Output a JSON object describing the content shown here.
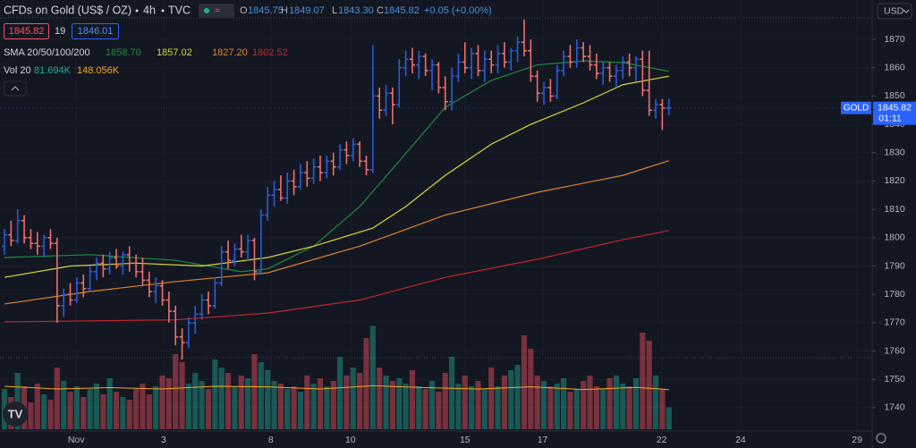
{
  "chart_data": {
    "type": "ohlc",
    "title": "CFDs on Gold (US$ / OZ)",
    "interval": "4h",
    "source": "TVC",
    "header": {
      "o": "O",
      "o_value": "1845.75",
      "h": "H",
      "h_value": "1849.07",
      "l": "L",
      "l_value": "1843.30",
      "c": "C",
      "c_value": "1845.82",
      "change": "+0.05 (+0.00%)"
    },
    "quote": {
      "bid": "1845.82",
      "spread": "19",
      "ask": "1846.01"
    },
    "price_label": {
      "symbol": "GOLD",
      "price": "1845.82",
      "countdown": "01:11"
    },
    "currency": "USD",
    "up_color": "#2a5bd7",
    "down_color": "#ef6f6c",
    "volume_up_color": "#22ab94",
    "volume_down_color": "#f7525f",
    "open": [
      1797,
      1801,
      1799,
      1806,
      1800,
      1798,
      1797,
      1800,
      1798,
      1776,
      1780,
      1778,
      1784,
      1782,
      1788,
      1791,
      1789,
      1793,
      1790,
      1794,
      1791,
      1788,
      1785,
      1781,
      1783,
      1778,
      1774,
      1765,
      1763,
      1770,
      1773,
      1778,
      1776,
      1784,
      1795,
      1792,
      1796,
      1795,
      1799,
      1788,
      1808,
      1815,
      1817,
      1814,
      1820,
      1818,
      1823,
      1821,
      1825,
      1823,
      1827,
      1825,
      1831,
      1829,
      1833,
      1827,
      1824,
      1850,
      1845,
      1851,
      1847,
      1860,
      1863,
      1861,
      1864,
      1859,
      1861,
      1853,
      1848,
      1857,
      1862,
      1860,
      1865,
      1859,
      1863,
      1861,
      1865,
      1862,
      1866,
      1869,
      1866,
      1857,
      1851,
      1853,
      1850,
      1859,
      1864,
      1862,
      1867,
      1864,
      1861,
      1858,
      1860,
      1857,
      1859,
      1862,
      1860,
      1863,
      1852,
      1845,
      1847,
      1845.75
    ],
    "high": [
      1803,
      1806,
      1810,
      1808,
      1803,
      1802,
      1801,
      1803,
      1800,
      1782,
      1784,
      1786,
      1787,
      1790,
      1793,
      1794,
      1795,
      1796,
      1795,
      1797,
      1794,
      1793,
      1788,
      1786,
      1785,
      1781,
      1776,
      1768,
      1772,
      1776,
      1780,
      1781,
      1786,
      1797,
      1799,
      1798,
      1801,
      1801,
      1800,
      1810,
      1818,
      1820,
      1822,
      1823,
      1824,
      1826,
      1827,
      1828,
      1829,
      1829,
      1830,
      1833,
      1834,
      1835,
      1834,
      1829,
      1868,
      1853,
      1854,
      1853,
      1863,
      1866,
      1867,
      1866,
      1865,
      1863,
      1862,
      1857,
      1860,
      1865,
      1869,
      1867,
      1868,
      1866,
      1866,
      1868,
      1869,
      1867,
      1871,
      1877,
      1870,
      1859,
      1855,
      1856,
      1861,
      1866,
      1868,
      1870,
      1869,
      1868,
      1865,
      1862,
      1862,
      1861,
      1864,
      1865,
      1864,
      1866,
      1866,
      1849,
      1849,
      1849.07
    ],
    "low": [
      1794,
      1797,
      1798,
      1798,
      1796,
      1794,
      1793,
      1796,
      1770,
      1772,
      1776,
      1777,
      1779,
      1781,
      1785,
      1786,
      1787,
      1789,
      1787,
      1788,
      1786,
      1783,
      1779,
      1777,
      1776,
      1770,
      1762,
      1757,
      1761,
      1766,
      1771,
      1773,
      1775,
      1783,
      1789,
      1790,
      1793,
      1792,
      1785,
      1787,
      1806,
      1811,
      1813,
      1812,
      1815,
      1817,
      1818,
      1819,
      1820,
      1821,
      1822,
      1824,
      1826,
      1827,
      1825,
      1822,
      1823,
      1842,
      1843,
      1840,
      1846,
      1857,
      1858,
      1856,
      1857,
      1852,
      1851,
      1845,
      1845,
      1855,
      1858,
      1856,
      1857,
      1855,
      1858,
      1858,
      1860,
      1859,
      1862,
      1864,
      1855,
      1848,
      1847,
      1848,
      1849,
      1857,
      1860,
      1860,
      1862,
      1859,
      1856,
      1854,
      1855,
      1853,
      1856,
      1857,
      1855,
      1850,
      1843,
      1842,
      1838,
      1843.3
    ],
    "close": [
      1801,
      1799,
      1806,
      1800,
      1798,
      1797,
      1800,
      1798,
      1776,
      1780,
      1778,
      1784,
      1782,
      1788,
      1791,
      1789,
      1793,
      1790,
      1794,
      1791,
      1788,
      1785,
      1781,
      1783,
      1778,
      1774,
      1765,
      1763,
      1770,
      1773,
      1778,
      1776,
      1784,
      1795,
      1792,
      1796,
      1795,
      1799,
      1788,
      1808,
      1815,
      1817,
      1814,
      1820,
      1818,
      1823,
      1821,
      1825,
      1823,
      1827,
      1825,
      1831,
      1829,
      1833,
      1827,
      1824,
      1850,
      1845,
      1851,
      1847,
      1860,
      1863,
      1861,
      1864,
      1859,
      1861,
      1853,
      1848,
      1857,
      1862,
      1860,
      1865,
      1859,
      1863,
      1861,
      1865,
      1862,
      1866,
      1869,
      1866,
      1857,
      1851,
      1853,
      1850,
      1859,
      1864,
      1862,
      1867,
      1864,
      1861,
      1858,
      1860,
      1857,
      1859,
      1862,
      1860,
      1863,
      1852,
      1845,
      1847,
      1845.77,
      1845.82
    ],
    "volume": [
      150,
      120,
      210,
      160,
      100,
      170,
      130,
      110,
      230,
      180,
      140,
      160,
      120,
      150,
      170,
      130,
      190,
      140,
      120,
      110,
      150,
      170,
      130,
      160,
      200,
      190,
      280,
      250,
      170,
      210,
      180,
      150,
      260,
      230,
      210,
      160,
      200,
      190,
      280,
      250,
      220,
      180,
      170,
      150,
      160,
      140,
      200,
      170,
      190,
      160,
      180,
      270,
      200,
      230,
      210,
      340,
      385,
      230,
      200,
      180,
      190,
      170,
      220,
      160,
      150,
      180,
      140,
      210,
      270,
      170,
      200,
      160,
      180,
      150,
      230,
      160,
      200,
      220,
      240,
      350,
      300,
      200,
      180,
      160,
      170,
      190,
      140,
      150,
      180,
      200,
      160,
      150,
      190,
      200,
      170,
      160,
      190,
      360,
      330,
      200,
      150,
      81.694
    ],
    "vlim": [
      0,
      1600
    ],
    "volume_legend": {
      "label": "Vol 20",
      "last": "81.694K",
      "ma": "148.056K",
      "ma_color": "#f5a623",
      "ma_x": [
        0,
        8,
        16,
        24,
        32,
        40,
        48,
        56,
        64,
        72,
        80,
        88,
        96,
        101
      ],
      "ma_values": [
        160,
        150,
        155,
        150,
        160,
        158,
        150,
        162,
        155,
        150,
        158,
        148,
        156,
        148.056
      ]
    },
    "sma": {
      "label": "SMA 20/50/100/200",
      "series": [
        {
          "name": "20",
          "color": "#1f8a3c",
          "legend_value": "1858.70",
          "x": [
            0,
            13,
            26,
            36,
            40,
            47,
            54,
            60,
            67,
            74,
            81,
            88,
            94,
            101
          ],
          "values": [
            1793,
            1794,
            1792,
            1788,
            1789,
            1797,
            1811,
            1827,
            1846,
            1855.5,
            1861,
            1862.4,
            1861.8,
            1858.7
          ]
        },
        {
          "name": "50",
          "color": "#d6d63a",
          "legend_value": "1857.02",
          "x": [
            0,
            10,
            20,
            30,
            40,
            47,
            56,
            61,
            67,
            74,
            80,
            88,
            94,
            101
          ],
          "values": [
            1786,
            1790,
            1791,
            1790,
            1793,
            1797,
            1803.4,
            1811,
            1822,
            1833,
            1840,
            1847.6,
            1854,
            1857.02
          ]
        },
        {
          "name": "100",
          "color": "#d9832e",
          "legend_value": "1827.20",
          "x": [
            0,
            13,
            26,
            40,
            54,
            67,
            81,
            94,
            101
          ],
          "values": [
            1776.6,
            1781,
            1784.5,
            1787.6,
            1797,
            1808,
            1816,
            1822,
            1827.2
          ]
        },
        {
          "name": "200",
          "color": "#c0262b",
          "legend_value": "1802.52",
          "x": [
            0,
            26,
            40,
            54,
            67,
            81,
            94,
            101
          ],
          "values": [
            1770.3,
            1771,
            1773.4,
            1778,
            1786,
            1792.4,
            1799.3,
            1802.52
          ]
        }
      ]
    },
    "xlim": [
      -0.68,
      131.9
    ],
    "xticks": [
      {
        "value": 10.9,
        "label": "Nov"
      },
      {
        "value": 24.2,
        "label": "3"
      },
      {
        "value": 40.5,
        "label": "8"
      },
      {
        "value": 52.6,
        "label": "10"
      },
      {
        "value": 70,
        "label": "15"
      },
      {
        "value": 81.8,
        "label": "17"
      },
      {
        "value": 99.9,
        "label": "22"
      },
      {
        "value": 111.9,
        "label": "24"
      },
      {
        "value": 129.6,
        "label": "29"
      }
    ],
    "ylim": [
      1732.4,
      1883.9
    ],
    "yticks": [
      1740,
      1750,
      1760,
      1770,
      1780,
      1790,
      1800,
      1810,
      1820,
      1830,
      1840,
      1850,
      1860,
      1870
    ],
    "grid": true
  }
}
